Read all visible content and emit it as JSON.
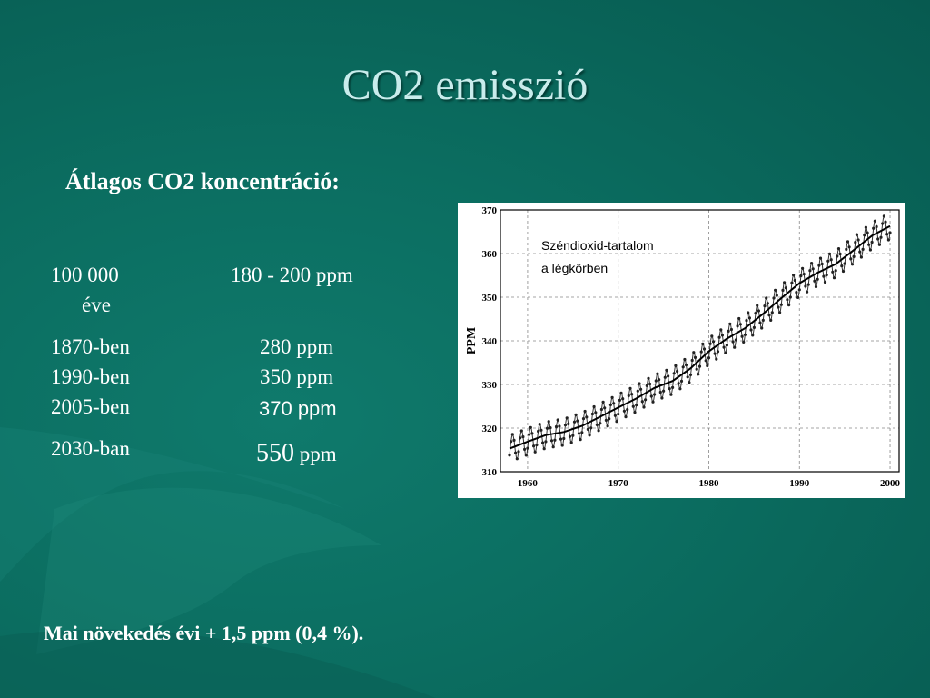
{
  "title": "CO2 emisszió",
  "subtitle": "Átlagos CO2 koncentráció:",
  "table": {
    "rows": [
      {
        "period_line1": "100 000",
        "period_line2": "éve",
        "value": "180 - 200 ppm"
      },
      {
        "period": "1870-ben",
        "value": "280 ppm"
      },
      {
        "period": "1990-ben",
        "value": "350 ppm"
      },
      {
        "period": "2005-ben",
        "value": "370 ppm"
      },
      {
        "period": "2030-ban",
        "value_big": "550",
        "value_unit": "ppm"
      }
    ]
  },
  "footer": "Mai  növekedés évi  + 1,5 ppm (0,4 %).",
  "colors": {
    "background": "#0b6d60",
    "title": "#c9ecec",
    "text": "#ffffff"
  },
  "chart_data": {
    "type": "line",
    "annotation_line1": "Széndioxid-tartalom",
    "annotation_line2": "a légkörben",
    "ylabel": "PPM",
    "xlabel": "",
    "xlim": [
      1957,
      2001
    ],
    "ylim": [
      310,
      370
    ],
    "x_ticks": [
      1960,
      1970,
      1980,
      1990,
      2000
    ],
    "y_ticks": [
      310,
      320,
      330,
      340,
      350,
      360,
      370
    ],
    "grid": true,
    "series": [
      {
        "style": "monthly-with-markers",
        "x": [
          1958,
          1960,
          1962,
          1964,
          1966,
          1968,
          1970,
          1972,
          1974,
          1976,
          1978,
          1980,
          1982,
          1984,
          1986,
          1988,
          1990,
          1992,
          1994,
          1996,
          1998,
          2000
        ],
        "values": [
          315.3,
          316.9,
          318.4,
          319.1,
          320.5,
          322.6,
          324.7,
          326.8,
          329.2,
          330.8,
          333.7,
          337.6,
          340.5,
          342.9,
          346.2,
          349.8,
          353.2,
          355.6,
          357.6,
          360.8,
          364.1,
          366.3
        ],
        "seasonal_amplitude": 3
      },
      {
        "style": "trend",
        "x": [
          1958,
          1960,
          1962,
          1964,
          1966,
          1968,
          1970,
          1972,
          1974,
          1976,
          1978,
          1980,
          1982,
          1984,
          1986,
          1988,
          1990,
          1992,
          1994,
          1996,
          1998,
          2000
        ],
        "values": [
          315.3,
          316.9,
          318.4,
          319.1,
          320.5,
          322.6,
          324.7,
          326.8,
          329.2,
          330.8,
          333.7,
          337.6,
          340.5,
          342.9,
          346.2,
          349.8,
          353.2,
          355.6,
          357.6,
          360.8,
          364.1,
          366.3
        ]
      }
    ]
  }
}
